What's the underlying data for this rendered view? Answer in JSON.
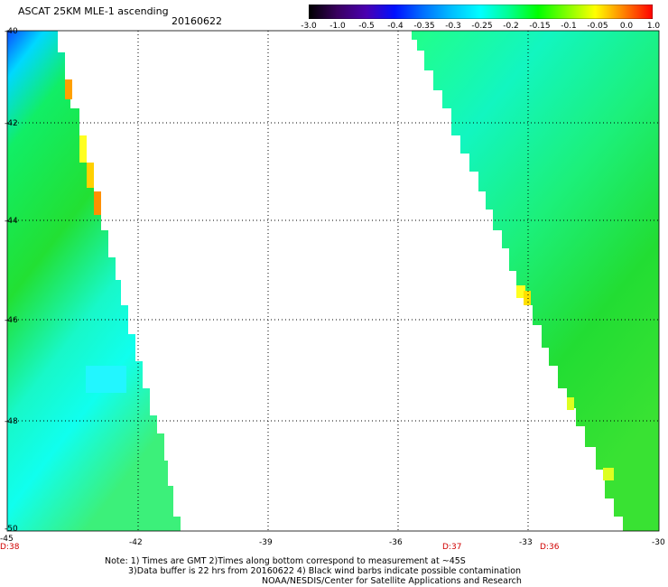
{
  "header": {
    "title": "ASCAT 25KM MLE-1 ascending",
    "date": "20160622"
  },
  "colorbar": {
    "labels": [
      "-3.0",
      "-1.0",
      "-0.5",
      "-0.4",
      "-0.35",
      "-0.3",
      "-0.25",
      "-0.2",
      "-0.15",
      "-0.1",
      "-0.05",
      "0.0",
      "1.0"
    ],
    "colors": [
      "#000000",
      "#3a0060",
      "#4a00b0",
      "#0010ff",
      "#0070ff",
      "#00c0ff",
      "#00ffff",
      "#00ff90",
      "#00ff00",
      "#80ff00",
      "#ffff00",
      "#ff8000",
      "#ff0000"
    ]
  },
  "map": {
    "lat_labels": [
      "-40",
      "-42",
      "-44",
      "-46",
      "-48",
      "-50"
    ],
    "lon_labels": [
      "-45",
      "-42",
      "-39",
      "-36",
      "-33",
      "-30"
    ],
    "time_labels": [
      "D:38",
      "D:37",
      "D:36"
    ]
  },
  "notes": {
    "line1": "Note: 1) Times are GMT 2)Times along bottom correspond to measurement at ~45S",
    "line2": "3)Data buffer is 22 hrs from 20160622 4) Black wind barbs indicate possible contamination",
    "line3": "NOAA/NESDIS/Center for Satellite Applications and Research"
  }
}
